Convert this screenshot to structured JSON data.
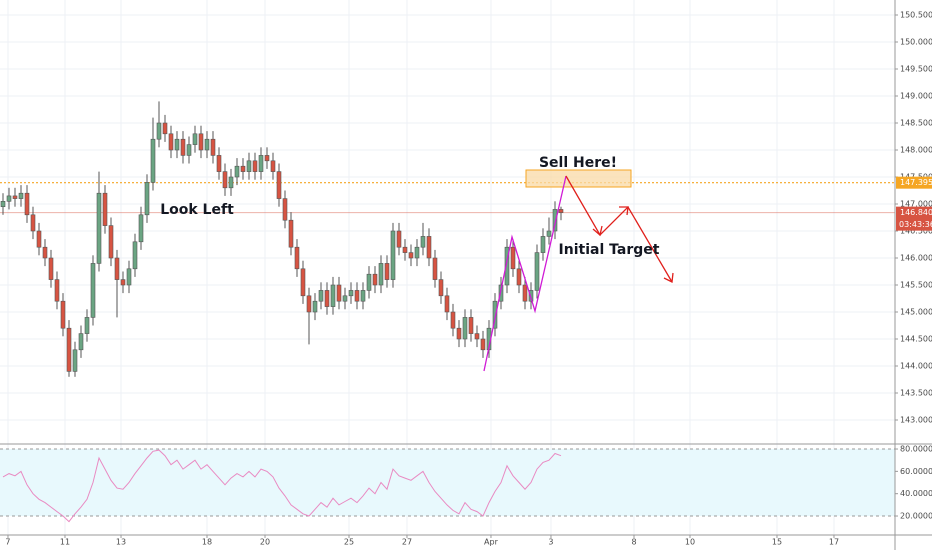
{
  "chart_data": [
    {
      "type": "candlestick",
      "up_color": "#6ba583",
      "down_color": "#d75442",
      "xlim": [
        -0.5,
        148.67
      ],
      "ylim": [
        142.574,
        150.778
      ],
      "xticks": [
        {
          "value": 0.83,
          "label": "7"
        },
        {
          "value": 10.33,
          "label": "11"
        },
        {
          "value": 19.67,
          "label": "13"
        },
        {
          "value": 34,
          "label": "18"
        },
        {
          "value": 43.67,
          "label": "20"
        },
        {
          "value": 57.67,
          "label": "25"
        },
        {
          "value": 67.33,
          "label": "27"
        },
        {
          "value": 81.33,
          "label": "Apr"
        },
        {
          "value": 91.33,
          "label": "3"
        },
        {
          "value": 105.17,
          "label": "8"
        },
        {
          "value": 114.5,
          "label": "10"
        },
        {
          "value": 129,
          "label": "15"
        },
        {
          "value": 138.5,
          "label": "17"
        }
      ],
      "yticks": [
        {
          "value": 143,
          "label": "143.000"
        },
        {
          "value": 143.5,
          "label": "143.500"
        },
        {
          "value": 144,
          "label": "144.000"
        },
        {
          "value": 144.5,
          "label": "144.500"
        },
        {
          "value": 145,
          "label": "145.000"
        },
        {
          "value": 145.5,
          "label": "145.500"
        },
        {
          "value": 146,
          "label": "146.000"
        },
        {
          "value": 146.5,
          "label": "146.500"
        },
        {
          "value": 147,
          "label": "147.000"
        },
        {
          "value": 147.5,
          "label": "147.500"
        },
        {
          "value": 148,
          "label": "148.000"
        },
        {
          "value": 148.5,
          "label": "148.500"
        },
        {
          "value": 149,
          "label": "149.000"
        },
        {
          "value": 149.5,
          "label": "149.500"
        },
        {
          "value": 150,
          "label": "150.000"
        },
        {
          "value": 150.5,
          "label": "150.500"
        }
      ],
      "grid": true,
      "open": [
        146.95,
        147.05,
        147.15,
        147.1,
        147.2,
        146.8,
        146.5,
        146.2,
        146.0,
        145.6,
        145.2,
        144.7,
        143.9,
        144.3,
        144.6,
        144.9,
        145.9,
        147.2,
        146.6,
        146.0,
        145.6,
        145.5,
        145.8,
        146.3,
        146.8,
        147.4,
        148.2,
        148.5,
        148.3,
        148.0,
        148.2,
        147.9,
        148.1,
        148.3,
        148.0,
        148.2,
        147.9,
        147.6,
        147.3,
        147.5,
        147.7,
        147.6,
        147.8,
        147.6,
        147.9,
        147.8,
        147.6,
        147.1,
        146.7,
        146.2,
        145.8,
        145.3,
        145.0,
        145.2,
        145.4,
        145.1,
        145.5,
        145.2,
        145.3,
        145.4,
        145.2,
        145.4,
        145.7,
        145.5,
        145.9,
        145.6,
        146.5,
        146.2,
        146.1,
        146.0,
        146.2,
        146.4,
        146.0,
        145.6,
        145.3,
        145.0,
        144.7,
        144.5,
        144.9,
        144.6,
        144.5,
        144.3,
        144.7,
        145.2,
        145.5,
        146.2,
        145.8,
        145.5,
        145.2,
        145.4,
        146.1,
        146.4,
        146.5,
        146.9
      ],
      "high": [
        147.2,
        147.3,
        147.3,
        147.35,
        147.35,
        146.95,
        146.65,
        146.35,
        146.15,
        145.75,
        145.35,
        144.85,
        144.45,
        144.75,
        145.05,
        146.05,
        147.6,
        147.35,
        146.75,
        146.15,
        145.75,
        145.95,
        146.45,
        146.95,
        147.55,
        148.6,
        148.9,
        148.65,
        148.45,
        148.35,
        148.35,
        148.25,
        148.45,
        148.45,
        148.35,
        148.35,
        148.05,
        147.75,
        147.65,
        147.85,
        147.85,
        147.95,
        147.95,
        148.05,
        148.05,
        147.95,
        147.75,
        147.25,
        146.85,
        146.35,
        145.95,
        145.45,
        145.35,
        145.55,
        145.55,
        145.65,
        145.65,
        145.45,
        145.55,
        145.55,
        145.55,
        145.85,
        145.85,
        146.05,
        146.05,
        146.65,
        146.65,
        146.35,
        146.25,
        146.35,
        146.65,
        146.55,
        146.15,
        145.75,
        145.45,
        145.15,
        144.85,
        145.05,
        145.05,
        144.75,
        144.65,
        144.85,
        145.35,
        145.65,
        146.35,
        146.35,
        145.95,
        145.65,
        145.55,
        146.25,
        146.55,
        146.75,
        147.05,
        146.95
      ],
      "low": [
        146.8,
        146.9,
        146.95,
        146.95,
        146.65,
        146.35,
        146.05,
        145.85,
        145.45,
        145.05,
        144.55,
        143.8,
        143.8,
        144.15,
        144.45,
        144.75,
        145.75,
        146.45,
        145.85,
        144.9,
        145.35,
        145.35,
        145.65,
        146.15,
        146.65,
        147.25,
        148.05,
        148.15,
        147.85,
        147.85,
        147.75,
        147.75,
        147.95,
        147.85,
        147.85,
        147.75,
        147.45,
        147.15,
        147.15,
        147.35,
        147.45,
        147.45,
        147.45,
        147.45,
        147.65,
        147.45,
        146.95,
        146.55,
        146.05,
        145.65,
        145.15,
        144.4,
        144.85,
        145.05,
        144.95,
        144.95,
        145.05,
        145.05,
        145.15,
        145.05,
        145.05,
        145.25,
        145.35,
        145.35,
        145.45,
        145.45,
        146.05,
        145.95,
        145.85,
        145.85,
        146.05,
        145.85,
        145.45,
        145.15,
        144.85,
        144.55,
        144.35,
        144.35,
        144.45,
        144.35,
        144.15,
        144.15,
        144.55,
        145.05,
        145.35,
        145.65,
        145.35,
        145.05,
        145.05,
        145.25,
        145.95,
        146.25,
        146.35,
        146.7
      ],
      "close": [
        147.05,
        147.15,
        147.1,
        147.2,
        146.8,
        146.5,
        146.2,
        146.0,
        145.6,
        145.2,
        144.7,
        143.9,
        144.3,
        144.6,
        144.9,
        145.9,
        147.2,
        146.6,
        146.0,
        145.6,
        145.5,
        145.8,
        146.3,
        146.8,
        147.4,
        148.2,
        148.5,
        148.3,
        148.0,
        148.2,
        147.9,
        148.1,
        148.3,
        148.0,
        148.2,
        147.9,
        147.6,
        147.3,
        147.5,
        147.7,
        147.6,
        147.8,
        147.6,
        147.9,
        147.8,
        147.6,
        147.1,
        146.7,
        146.2,
        145.8,
        145.3,
        145.0,
        145.2,
        145.4,
        145.1,
        145.5,
        145.2,
        145.3,
        145.4,
        145.2,
        145.4,
        145.7,
        145.5,
        145.9,
        145.6,
        146.5,
        146.2,
        146.1,
        146.0,
        146.2,
        146.4,
        146.0,
        145.6,
        145.3,
        145.0,
        144.7,
        144.5,
        144.9,
        144.6,
        144.5,
        144.3,
        144.7,
        145.2,
        145.5,
        146.2,
        145.8,
        145.5,
        145.2,
        145.4,
        146.1,
        146.4,
        146.5,
        146.9,
        146.84
      ],
      "resistance": {
        "value": 147.395,
        "color": "#f5a623"
      },
      "last_price": {
        "value": 146.84,
        "label": "146.840",
        "color": "#d75442"
      },
      "countdown": "03:43:36",
      "annotations": [
        "Sell Here!",
        "Look Left",
        "Initial Target"
      ]
    },
    {
      "type": "line",
      "color": "#e98ac2",
      "band_color": "#e8f9fd",
      "xlim": [
        -0.5,
        148.67
      ],
      "ylim": [
        3.0,
        83.6
      ],
      "yticks": [
        {
          "value": 20,
          "label": "20.0000"
        },
        {
          "value": 40,
          "label": "40.0000"
        },
        {
          "value": 60,
          "label": "60.0000"
        },
        {
          "value": 80,
          "label": "80.0000"
        }
      ],
      "band": [
        20,
        80
      ],
      "values": [
        55,
        58,
        56,
        60,
        48,
        40,
        35,
        32,
        28,
        24,
        20,
        15,
        22,
        28,
        35,
        50,
        72,
        62,
        52,
        45,
        44,
        50,
        58,
        65,
        72,
        78,
        79,
        74,
        66,
        70,
        62,
        66,
        70,
        62,
        66,
        60,
        54,
        48,
        54,
        58,
        55,
        60,
        55,
        62,
        60,
        55,
        45,
        38,
        30,
        26,
        22,
        20,
        26,
        32,
        28,
        36,
        30,
        33,
        36,
        32,
        38,
        45,
        40,
        50,
        44,
        62,
        56,
        54,
        52,
        56,
        60,
        50,
        42,
        36,
        30,
        25,
        22,
        32,
        26,
        24,
        20,
        32,
        42,
        50,
        65,
        56,
        50,
        44,
        50,
        62,
        68,
        70,
        76,
        74
      ]
    }
  ]
}
